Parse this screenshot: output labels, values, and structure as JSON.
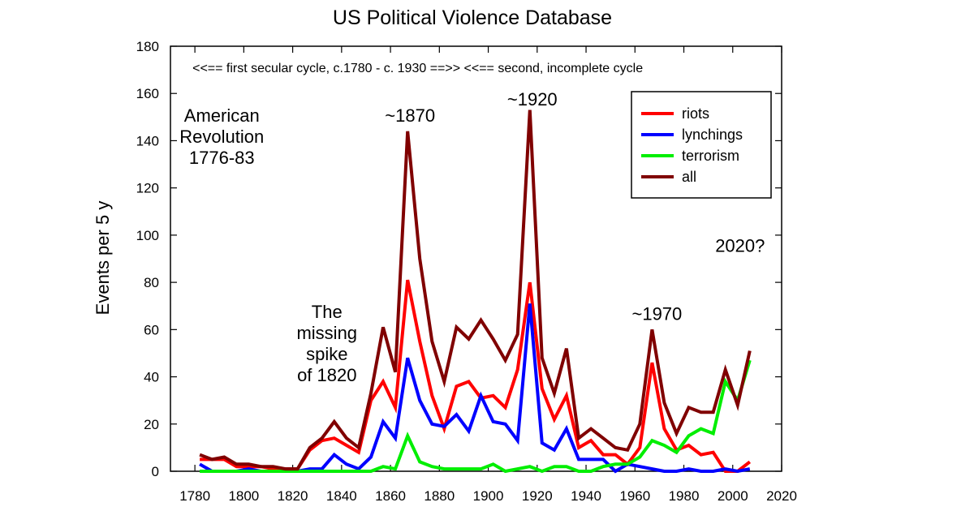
{
  "chart_data": {
    "type": "line",
    "title": "US Political Violence Database",
    "xlabel": "",
    "ylabel": "Events per 5 y",
    "xlim": [
      1770,
      2020
    ],
    "ylim": [
      0,
      180
    ],
    "xticks": [
      1780,
      1800,
      1820,
      1840,
      1860,
      1880,
      1900,
      1920,
      1940,
      1960,
      1980,
      2000,
      2020
    ],
    "yticks": [
      0,
      20,
      40,
      60,
      80,
      100,
      120,
      140,
      160,
      180
    ],
    "grid": false,
    "legend_position": "top-right",
    "x": [
      1782,
      1787,
      1792,
      1797,
      1802,
      1807,
      1812,
      1817,
      1822,
      1827,
      1832,
      1837,
      1842,
      1847,
      1852,
      1857,
      1862,
      1867,
      1872,
      1877,
      1882,
      1887,
      1892,
      1897,
      1902,
      1907,
      1912,
      1917,
      1922,
      1927,
      1932,
      1937,
      1942,
      1947,
      1952,
      1957,
      1962,
      1967,
      1972,
      1977,
      1982,
      1987,
      1992,
      1997,
      2002,
      2007
    ],
    "series": [
      {
        "name": "riots",
        "color": "#ff0000",
        "values": [
          5,
          5,
          5,
          2,
          2,
          2,
          1,
          1,
          1,
          9,
          13,
          14,
          11,
          8,
          30,
          38,
          27,
          81,
          55,
          32,
          18,
          36,
          38,
          31,
          32,
          27,
          43,
          80,
          35,
          22,
          32,
          10,
          13,
          7,
          7,
          3,
          10,
          46,
          18,
          9,
          11,
          7,
          8,
          0,
          0,
          4
        ]
      },
      {
        "name": "lynchings",
        "color": "#0000ff",
        "values": [
          3,
          0,
          0,
          0,
          1,
          0,
          0,
          0,
          0,
          1,
          1,
          7,
          3,
          1,
          6,
          21,
          14,
          48,
          30,
          20,
          19,
          24,
          17,
          32,
          21,
          20,
          13,
          71,
          12,
          9,
          18,
          5,
          5,
          5,
          0,
          3,
          2,
          1,
          0,
          0,
          1,
          0,
          0,
          1,
          0,
          1
        ]
      },
      {
        "name": "terrorism",
        "color": "#00ee00",
        "values": [
          0,
          0,
          0,
          0,
          0,
          0,
          0,
          0,
          0,
          0,
          0,
          0,
          0,
          0,
          0,
          2,
          1,
          15,
          4,
          2,
          1,
          1,
          1,
          1,
          3,
          0,
          1,
          2,
          0,
          2,
          2,
          0,
          0,
          2,
          3,
          3,
          6,
          13,
          11,
          8,
          15,
          18,
          16,
          38,
          30,
          47
        ]
      },
      {
        "name": "all",
        "color": "#800000",
        "values": [
          7,
          5,
          6,
          3,
          3,
          2,
          2,
          1,
          1,
          10,
          14,
          21,
          14,
          10,
          33,
          61,
          42,
          144,
          90,
          55,
          38,
          61,
          56,
          64,
          56,
          47,
          58,
          153,
          48,
          33,
          52,
          14,
          18,
          14,
          10,
          9,
          20,
          60,
          29,
          16,
          27,
          25,
          25,
          43,
          28,
          51
        ]
      }
    ],
    "annotations": [
      {
        "lines": [
          "<<== first secular cycle, c.1780 - c. 1930 ==>> <<== second, incomplete cycle"
        ],
        "x": 1779,
        "y": 169,
        "anchor": "start",
        "size": "small"
      },
      {
        "lines": [
          "American",
          "Revolution",
          "1776-83"
        ],
        "x": 1791,
        "y": 148,
        "anchor": "middle"
      },
      {
        "lines": [
          "~1870"
        ],
        "x": 1868,
        "y": 148,
        "anchor": "middle"
      },
      {
        "lines": [
          "~1920"
        ],
        "x": 1918,
        "y": 155,
        "anchor": "middle"
      },
      {
        "lines": [
          "The",
          "missing",
          "spike",
          "of 1820"
        ],
        "x": 1834,
        "y": 65,
        "anchor": "middle"
      },
      {
        "lines": [
          "~1970"
        ],
        "x": 1969,
        "y": 64,
        "anchor": "middle"
      },
      {
        "lines": [
          "2020?"
        ],
        "x": 2003,
        "y": 93,
        "anchor": "middle"
      }
    ]
  }
}
